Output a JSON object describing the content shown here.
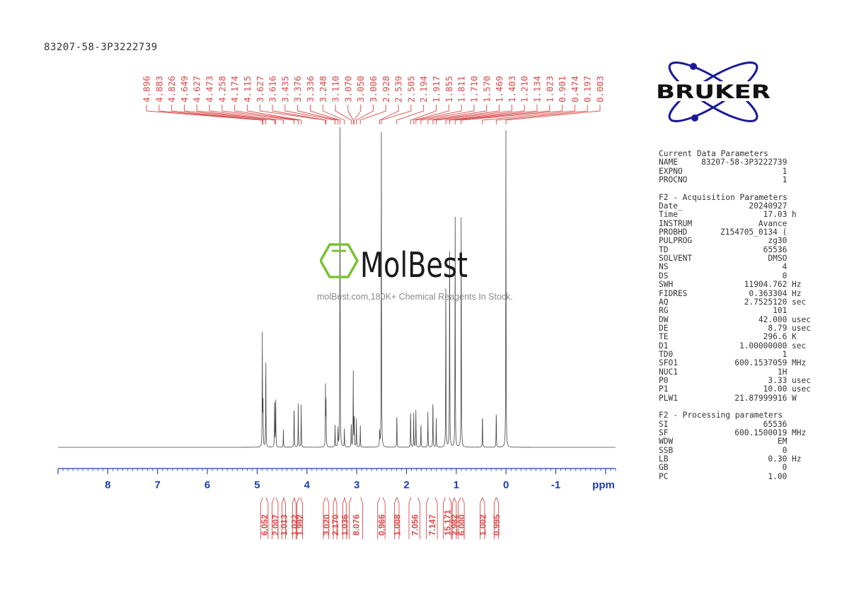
{
  "title": "83207-58-3P3222739",
  "brand_logo_text": "BRUKER",
  "watermark": {
    "logo_text": "MolBest",
    "tagline": "molBest.com,180K+ Chemical Reagents In Stock."
  },
  "colors": {
    "peak_labels": "#d94848",
    "axis": "#1c3fb8",
    "spectrum": "#444444",
    "brand": "#1a1a9a",
    "watermark_green": "#7ac231"
  },
  "parameters": [
    {
      "title": "Current Data Parameters",
      "rows": [
        {
          "key": "NAME",
          "value": "83207-58-3P3222739",
          "unit": ""
        },
        {
          "key": "EXPNO",
          "value": "1",
          "unit": ""
        },
        {
          "key": "PROCNO",
          "value": "1",
          "unit": ""
        }
      ]
    },
    {
      "title": "F2 - Acquisition Parameters",
      "rows": [
        {
          "key": "Date_",
          "value": "20240927",
          "unit": ""
        },
        {
          "key": "Time",
          "value": "17.03",
          "unit": "h"
        },
        {
          "key": "INSTRUM",
          "value": "Avance",
          "unit": ""
        },
        {
          "key": "PROBHD",
          "value": "Z154705_0134 (",
          "unit": ""
        },
        {
          "key": "PULPROG",
          "value": "zg30",
          "unit": ""
        },
        {
          "key": "TD",
          "value": "65536",
          "unit": ""
        },
        {
          "key": "SOLVENT",
          "value": "DMSO",
          "unit": ""
        },
        {
          "key": "NS",
          "value": "4",
          "unit": ""
        },
        {
          "key": "DS",
          "value": "0",
          "unit": ""
        },
        {
          "key": "SWH",
          "value": "11904.762",
          "unit": "Hz"
        },
        {
          "key": "FIDRES",
          "value": "0.363304",
          "unit": "Hz"
        },
        {
          "key": "AQ",
          "value": "2.7525120",
          "unit": "sec"
        },
        {
          "key": "RG",
          "value": "101",
          "unit": ""
        },
        {
          "key": "DW",
          "value": "42.000",
          "unit": "usec"
        },
        {
          "key": "DE",
          "value": "8.79",
          "unit": "usec"
        },
        {
          "key": "TE",
          "value": "296.6",
          "unit": "K"
        },
        {
          "key": "D1",
          "value": "1.00000000",
          "unit": "sec"
        },
        {
          "key": "TD0",
          "value": "1",
          "unit": ""
        },
        {
          "key": "SFO1",
          "value": "600.1537059",
          "unit": "MHz"
        },
        {
          "key": "NUC1",
          "value": "1H",
          "unit": ""
        },
        {
          "key": "P0",
          "value": "3.33",
          "unit": "usec"
        },
        {
          "key": "P1",
          "value": "10.00",
          "unit": "usec"
        },
        {
          "key": "PLW1",
          "value": "21.87999916",
          "unit": "W"
        }
      ]
    },
    {
      "title": "F2 - Processing parameters",
      "rows": [
        {
          "key": "SI",
          "value": "65536",
          "unit": ""
        },
        {
          "key": "SF",
          "value": "600.1500019",
          "unit": "MHz"
        },
        {
          "key": "WDW",
          "value": "EM",
          "unit": ""
        },
        {
          "key": "SSB",
          "value": "0",
          "unit": ""
        },
        {
          "key": "LB",
          "value": "0.30",
          "unit": "Hz"
        },
        {
          "key": "GB",
          "value": "0",
          "unit": ""
        },
        {
          "key": "PC",
          "value": "1.00",
          "unit": ""
        }
      ]
    }
  ],
  "chart_data": {
    "type": "line",
    "title": "83207-58-3P3222739",
    "xlabel": "ppm",
    "ylabel": "",
    "x_reversed": true,
    "xlim": [
      -2.2,
      9.0
    ],
    "ylim": [
      0,
      1
    ],
    "x_ticks": [
      "8",
      "7",
      "6",
      "5",
      "4",
      "3",
      "2",
      "1",
      "0",
      "-1"
    ],
    "x_tick_values": [
      8,
      7,
      6,
      5,
      4,
      3,
      2,
      1,
      0,
      -1
    ],
    "peak_labels": [
      "4.896",
      "4.883",
      "4.826",
      "4.649",
      "4.627",
      "4.473",
      "4.258",
      "4.174",
      "4.115",
      "3.627",
      "3.616",
      "3.435",
      "3.376",
      "3.336",
      "3.248",
      "3.110",
      "3.070",
      "3.050",
      "3.006",
      "2.928",
      "2.539",
      "2.505",
      "2.194",
      "1.917",
      "1.855",
      "1.811",
      "1.710",
      "1.570",
      "1.469",
      "1.403",
      "1.210",
      "1.134",
      "1.023",
      "0.901",
      "0.474",
      "0.197",
      "0.003"
    ],
    "integrals": [
      {
        "value": "6.052",
        "from": 4.93,
        "to": 4.78
      },
      {
        "value": "2.007",
        "from": 4.7,
        "to": 4.58
      },
      {
        "value": "1.013",
        "from": 4.5,
        "to": 4.43
      },
      {
        "value": "1.022",
        "from": 4.29,
        "to": 4.22
      },
      {
        "value": "1.992",
        "from": 4.2,
        "to": 4.09
      },
      {
        "value": "3.020",
        "from": 3.67,
        "to": 3.56
      },
      {
        "value": "2.170",
        "from": 3.47,
        "to": 3.4
      },
      {
        "value": "1.036",
        "from": 3.28,
        "to": 3.21
      },
      {
        "value": "8.076",
        "from": 3.15,
        "to": 2.88
      },
      {
        "value": "0.966",
        "from": 2.58,
        "to": 2.43
      },
      {
        "value": "1.008",
        "from": 2.24,
        "to": 2.15
      },
      {
        "value": "7.056",
        "from": 1.95,
        "to": 1.73
      },
      {
        "value": "7.147",
        "from": 1.6,
        "to": 1.38
      },
      {
        "value": "15.171",
        "from": 1.26,
        "to": 1.1
      },
      {
        "value": "2.982",
        "from": 1.08,
        "to": 1.0
      },
      {
        "value": "6.000",
        "from": 0.96,
        "to": 0.84
      },
      {
        "value": "1.002",
        "from": 0.52,
        "to": 0.43
      },
      {
        "value": "0.995",
        "from": 0.24,
        "to": 0.15
      }
    ],
    "peaks": [
      {
        "ppm": 4.896,
        "height": 0.35
      },
      {
        "ppm": 4.883,
        "height": 0.15
      },
      {
        "ppm": 4.826,
        "height": 0.29
      },
      {
        "ppm": 4.649,
        "height": 0.17
      },
      {
        "ppm": 4.627,
        "height": 0.16
      },
      {
        "ppm": 4.473,
        "height": 0.055
      },
      {
        "ppm": 4.258,
        "height": 0.14
      },
      {
        "ppm": 4.174,
        "height": 0.14
      },
      {
        "ppm": 4.115,
        "height": 0.14
      },
      {
        "ppm": 3.627,
        "height": 0.19
      },
      {
        "ppm": 3.616,
        "height": 0.14
      },
      {
        "ppm": 3.435,
        "height": 0.07
      },
      {
        "ppm": 3.376,
        "height": 0.06
      },
      {
        "ppm": 3.336,
        "height": 1.0
      },
      {
        "ppm": 3.248,
        "height": 0.06
      },
      {
        "ppm": 3.11,
        "height": 0.08
      },
      {
        "ppm": 3.07,
        "height": 0.24
      },
      {
        "ppm": 3.05,
        "height": 0.11
      },
      {
        "ppm": 3.006,
        "height": 0.09
      },
      {
        "ppm": 2.928,
        "height": 0.07
      },
      {
        "ppm": 2.539,
        "height": 0.05
      },
      {
        "ppm": 2.505,
        "height": 1.0
      },
      {
        "ppm": 2.194,
        "height": 0.11
      },
      {
        "ppm": 1.917,
        "height": 0.12
      },
      {
        "ppm": 1.855,
        "height": 0.11
      },
      {
        "ppm": 1.811,
        "height": 0.12
      },
      {
        "ppm": 1.71,
        "height": 0.08
      },
      {
        "ppm": 1.57,
        "height": 0.11
      },
      {
        "ppm": 1.469,
        "height": 0.16
      },
      {
        "ppm": 1.403,
        "height": 0.09
      },
      {
        "ppm": 1.21,
        "height": 0.55
      },
      {
        "ppm": 1.134,
        "height": 0.66
      },
      {
        "ppm": 1.023,
        "height": 0.72
      },
      {
        "ppm": 0.901,
        "height": 0.78
      },
      {
        "ppm": 0.474,
        "height": 0.11
      },
      {
        "ppm": 0.197,
        "height": 0.12
      },
      {
        "ppm": 0.003,
        "height": 0.99
      }
    ]
  }
}
